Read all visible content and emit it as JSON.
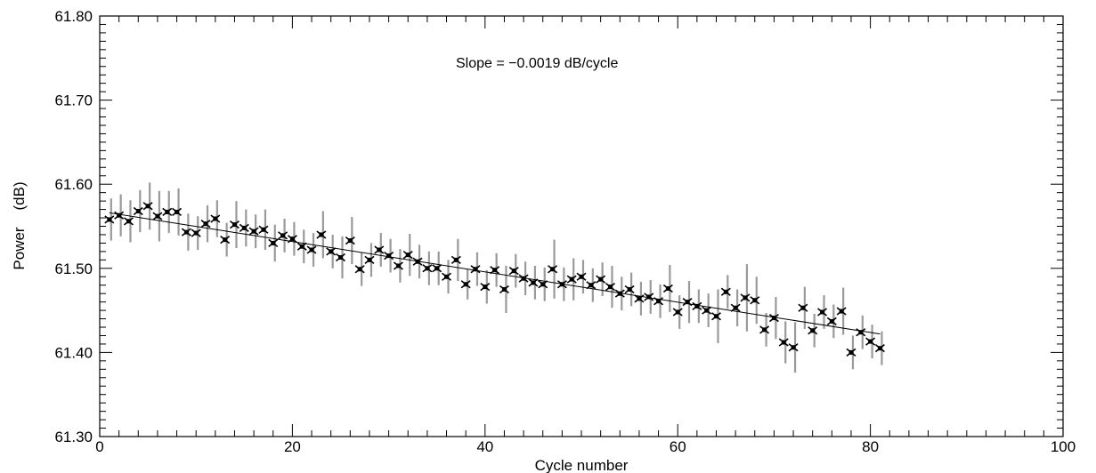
{
  "chart_data": {
    "type": "scatter",
    "xlabel": "Cycle number",
    "ylabel": "Power    (dB)",
    "annotation": "Slope = −0.0019 dB/cycle",
    "xlim": [
      0,
      100
    ],
    "ylim": [
      61.3,
      61.8
    ],
    "xticks": [
      0,
      20,
      40,
      60,
      80,
      100
    ],
    "yticks": [
      61.3,
      61.4,
      61.5,
      61.6,
      61.7,
      61.8
    ],
    "xtick_labels": [
      "0",
      "20",
      "40",
      "60",
      "80",
      "100"
    ],
    "ytick_labels": [
      "61.30",
      "61.40",
      "61.50",
      "61.60",
      "61.70",
      "61.80"
    ],
    "fit_line": {
      "x": [
        1,
        81
      ],
      "y": [
        61.566,
        61.422
      ]
    },
    "series": [
      {
        "x": [
          1,
          2,
          3,
          4,
          5,
          6,
          7,
          8,
          9,
          10,
          11,
          12,
          13,
          14,
          15,
          16,
          17,
          18,
          19,
          20,
          21,
          22,
          23,
          24,
          25,
          26,
          27,
          28,
          29,
          30,
          31,
          32,
          33,
          34,
          35,
          36,
          37,
          38,
          39,
          40,
          41,
          42,
          43,
          44,
          45,
          46,
          47,
          48,
          49,
          50,
          51,
          52,
          53,
          54,
          55,
          56,
          57,
          58,
          59,
          60,
          61,
          62,
          63,
          64,
          65,
          66,
          67,
          68,
          69,
          70,
          71,
          72,
          73,
          74,
          75,
          76,
          77,
          78,
          79,
          80,
          81
        ],
        "y": [
          61.558,
          61.563,
          61.556,
          61.568,
          61.574,
          61.562,
          61.567,
          61.567,
          61.543,
          61.542,
          61.553,
          61.559,
          61.534,
          61.552,
          61.548,
          61.544,
          61.546,
          61.53,
          61.539,
          61.535,
          61.526,
          61.522,
          61.54,
          61.52,
          61.513,
          61.533,
          61.499,
          61.51,
          61.522,
          61.515,
          61.503,
          61.516,
          61.508,
          61.5,
          61.5,
          61.49,
          61.51,
          61.481,
          61.499,
          61.478,
          61.498,
          61.475,
          61.497,
          61.488,
          61.483,
          61.481,
          61.499,
          61.481,
          61.487,
          61.49,
          61.48,
          61.487,
          61.478,
          61.47,
          61.475,
          61.464,
          61.466,
          61.461,
          61.476,
          61.448,
          61.46,
          61.455,
          61.45,
          61.443,
          61.472,
          61.453,
          61.465,
          61.462,
          61.427,
          61.441,
          61.412,
          61.406,
          61.453,
          61.426,
          61.448,
          61.437,
          61.449,
          61.4,
          61.424,
          61.413,
          61.405
        ],
        "err": [
          0.025,
          0.025,
          0.025,
          0.025,
          0.028,
          0.03,
          0.025,
          0.028,
          0.022,
          0.02,
          0.022,
          0.022,
          0.02,
          0.028,
          0.022,
          0.02,
          0.024,
          0.022,
          0.02,
          0.02,
          0.02,
          0.02,
          0.028,
          0.02,
          0.025,
          0.028,
          0.02,
          0.02,
          0.02,
          0.02,
          0.02,
          0.025,
          0.02,
          0.02,
          0.02,
          0.02,
          0.025,
          0.018,
          0.02,
          0.02,
          0.02,
          0.028,
          0.02,
          0.02,
          0.02,
          0.02,
          0.035,
          0.02,
          0.025,
          0.02,
          0.02,
          0.02,
          0.025,
          0.02,
          0.02,
          0.02,
          0.02,
          0.02,
          0.028,
          0.02,
          0.025,
          0.02,
          0.02,
          0.032,
          0.02,
          0.022,
          0.04,
          0.028,
          0.02,
          0.025,
          0.025,
          0.03,
          0.025,
          0.02,
          0.02,
          0.02,
          0.028,
          0.02,
          0.02,
          0.02,
          0.02
        ]
      }
    ]
  }
}
